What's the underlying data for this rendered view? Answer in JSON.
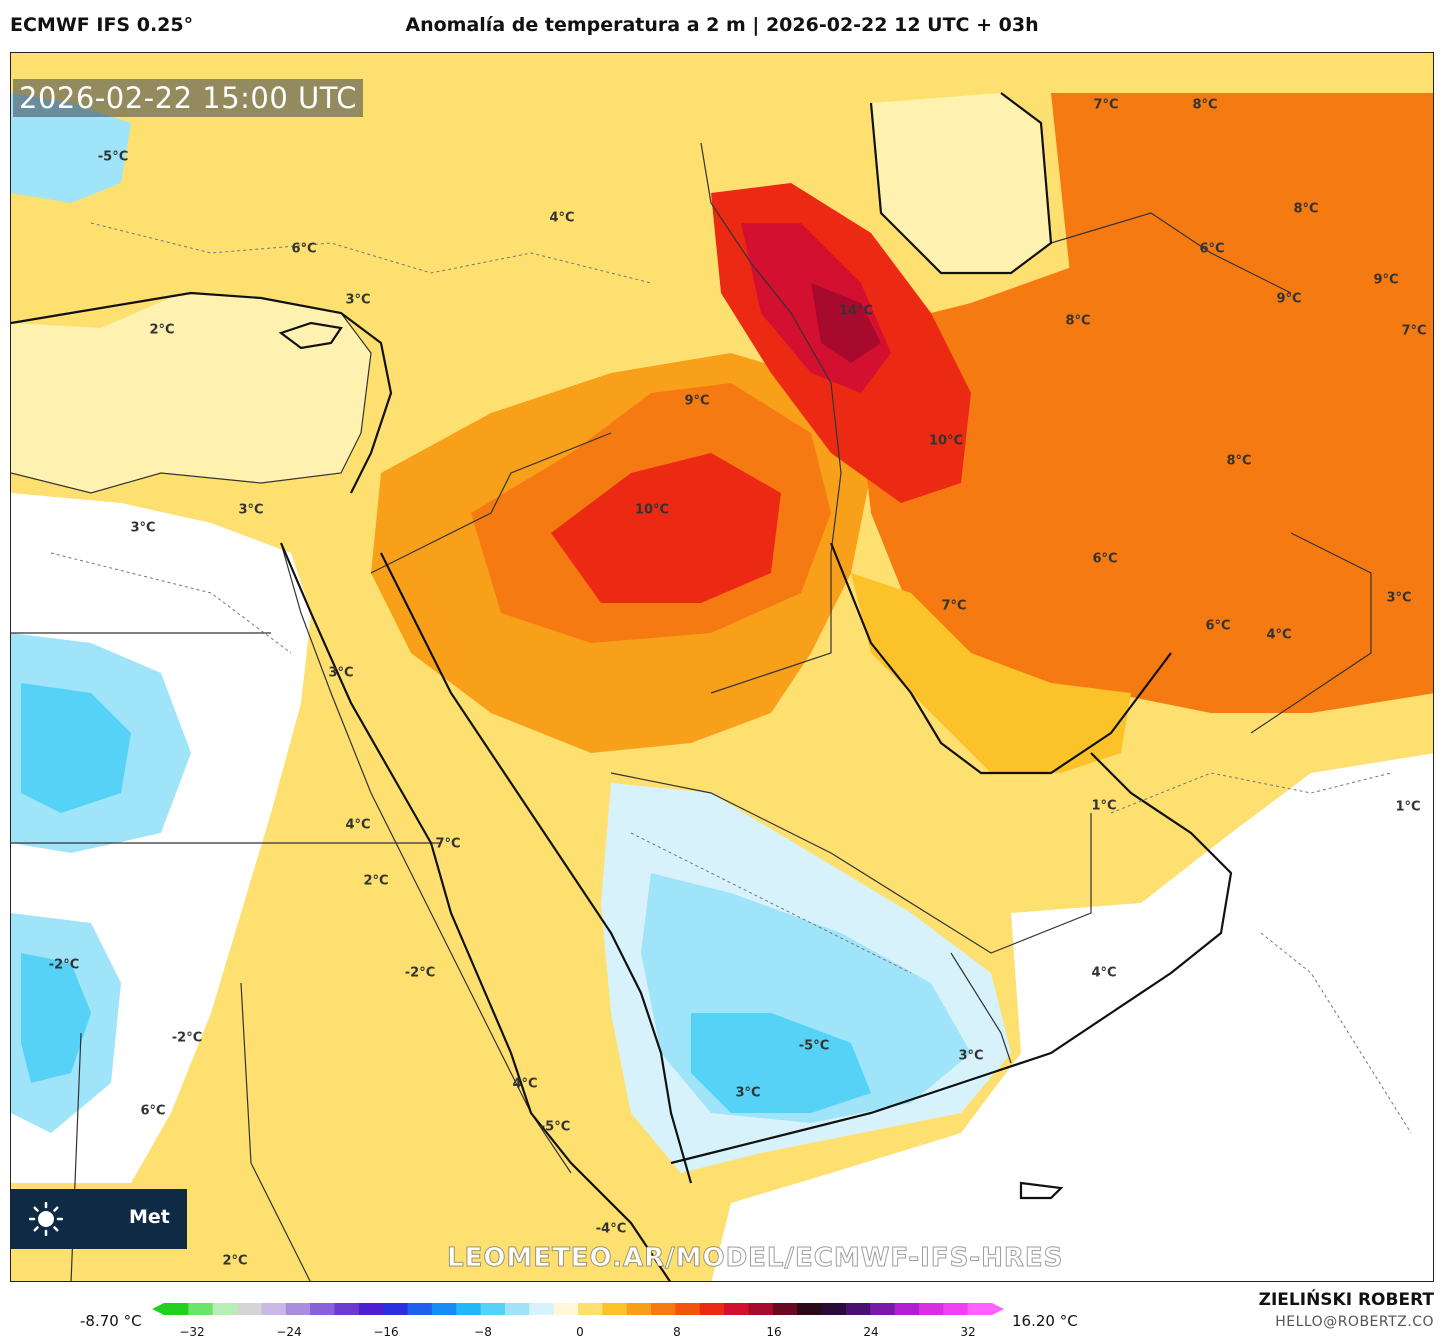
{
  "header": {
    "model": "ECMWF IFS 0.25°",
    "title": "Anomalía de temperatura a 2 m | 2026-02-22 12 UTC + 03h"
  },
  "map": {
    "valid_time": "2026-02-22 15:00 UTC",
    "watermark": "LEOMETEO.AR/MODEL/ECMWF-IFS-HRES",
    "logo_text": "Met",
    "labels": [
      "-5°C",
      "4°C",
      "6°C",
      "3°C",
      "2°C",
      "3°C",
      "3°C",
      "9°C",
      "10°C",
      "14°C",
      "10°C",
      "7°C",
      "8°C",
      "8°C",
      "6°C",
      "9°C",
      "8°C",
      "9°C",
      "7°C",
      "8°C",
      "6°C",
      "7°C",
      "6°C",
      "4°C",
      "3°C",
      "3°C",
      "4°C",
      "2°C",
      "7°C",
      "-2°C",
      "-2°C",
      "-2°C",
      "6°C",
      "4°C",
      "-5°C",
      "-4°C",
      "-5°C",
      "3°C",
      "3°C",
      "4°C",
      "1°C",
      "1°C",
      "2°C"
    ]
  },
  "colorbar": {
    "min_label": "-8.70 °C",
    "max_label": "16.20 °C",
    "ticks": [
      "−32",
      "−24",
      "−16",
      "−8",
      "0",
      "8",
      "16",
      "24",
      "32"
    ],
    "colors": [
      "#22d11e",
      "#6be46a",
      "#b6efb5",
      "#d5d5d5",
      "#c9b8e6",
      "#a98ee0",
      "#8a62d8",
      "#6c3ad0",
      "#4e1fd0",
      "#2b2fe0",
      "#1e5ef0",
      "#168cf6",
      "#20b8f6",
      "#55d2f6",
      "#9fe4f8",
      "#d8f2fb",
      "#fff8d8",
      "#fde070",
      "#fcc22a",
      "#f9a01a",
      "#f67a12",
      "#f2540e",
      "#ec2a14",
      "#d41030",
      "#a80a2e",
      "#6a0a22",
      "#2a0a18",
      "#2a0a38",
      "#4a1070",
      "#7c18a8",
      "#b020d0",
      "#d830e0",
      "#f040f0",
      "#ff60ff"
    ]
  },
  "footer": {
    "author": "ZIELIŃSKI ROBERT",
    "email": "HELLO@ROBERTZ.CO"
  }
}
